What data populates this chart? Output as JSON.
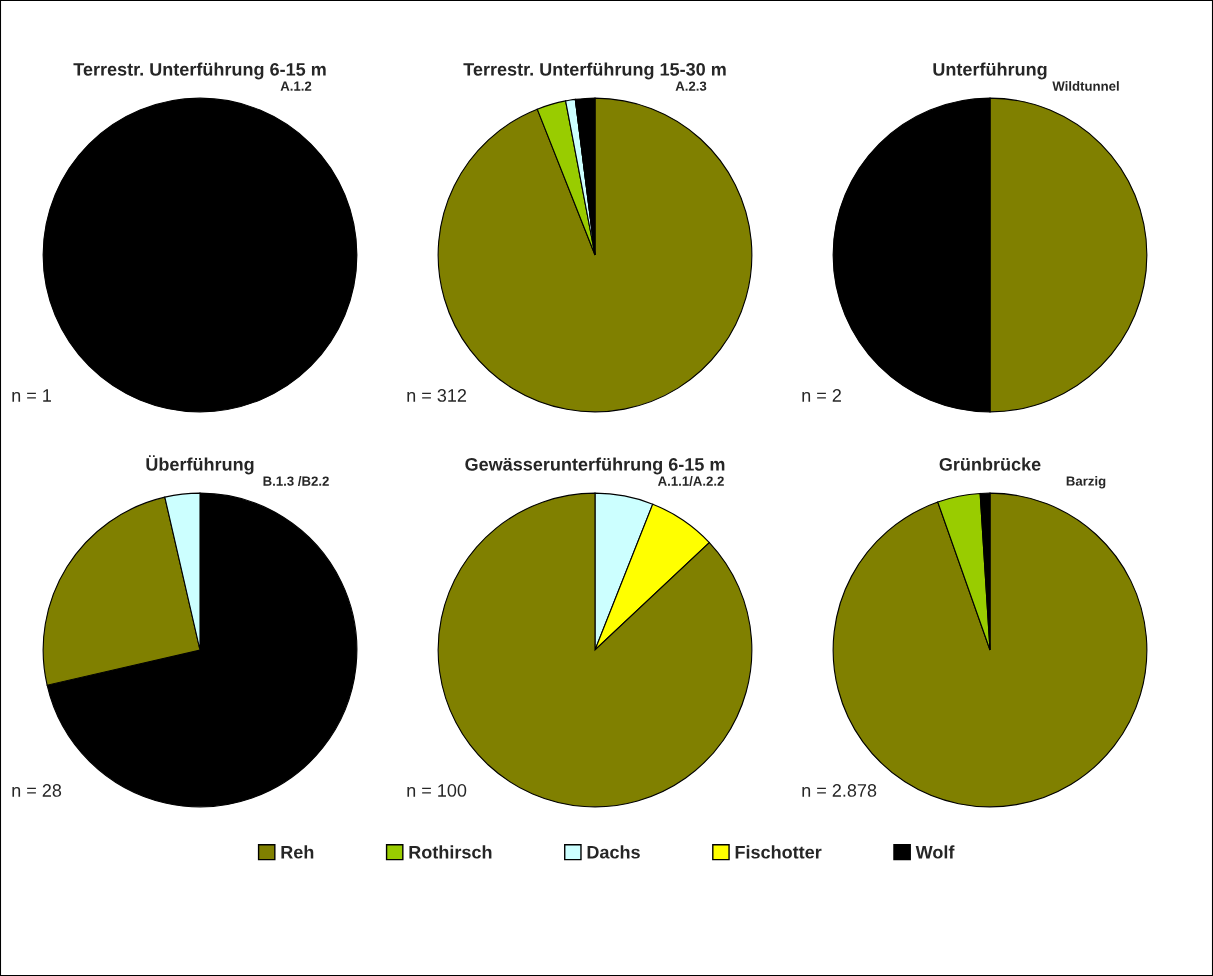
{
  "chart_data": [
    {
      "type": "pie",
      "title": "Terrestr. Unterführung 6-15 m",
      "categories": [
        null
      ],
      "values": [
        100
      ],
      "colors": [
        "#000000"
      ],
      "annotations": [
        "A.1.2",
        "n = 1"
      ]
    },
    {
      "type": "pie",
      "title": "Terrestr. Unterführung 15-30 m",
      "categories": [
        "Reh",
        "Rothirsch",
        "Dachs",
        "Fischotter",
        "Wolf"
      ],
      "values": [
        94,
        3,
        1,
        0,
        2
      ],
      "colors": [
        "#808000",
        "#99cc00",
        "#ccffff",
        "#ffff00",
        "#000000"
      ],
      "legend": "bottom",
      "annotations": [
        "A.2.3",
        "n = 312"
      ]
    },
    {
      "type": "pie",
      "title": "Unterführung",
      "categories": [
        null,
        null
      ],
      "values": [
        50,
        50
      ],
      "colors": [
        "#808000",
        "#000000"
      ],
      "annotations": [
        "Wildtunnel",
        "n = 2"
      ]
    },
    {
      "type": "pie",
      "title": "Überführung",
      "categories": [
        null,
        null,
        null
      ],
      "values": [
        71.4,
        25,
        3.6
      ],
      "colors": [
        "#000000",
        "#808000",
        "#ccffff"
      ],
      "annotations": [
        "B.1.3 /B2.2",
        "n = 28"
      ]
    },
    {
      "type": "pie",
      "title": "Gewässerunterführung 6-15 m",
      "categories": [
        null,
        null,
        null
      ],
      "values": [
        6,
        7,
        87
      ],
      "colors": [
        "#ccffff",
        "#ffff00",
        "#808000"
      ],
      "annotations": [
        "A.1.1/A.2.2",
        "n = 100"
      ]
    },
    {
      "type": "pie",
      "title": "Grünbrücke",
      "categories": [
        null,
        null,
        null
      ],
      "values": [
        94.6,
        4.4,
        1
      ],
      "colors": [
        "#808000",
        "#99cc00",
        "#000000"
      ],
      "annotations": [
        "Barzig",
        "n = 2.878"
      ]
    }
  ]
}
